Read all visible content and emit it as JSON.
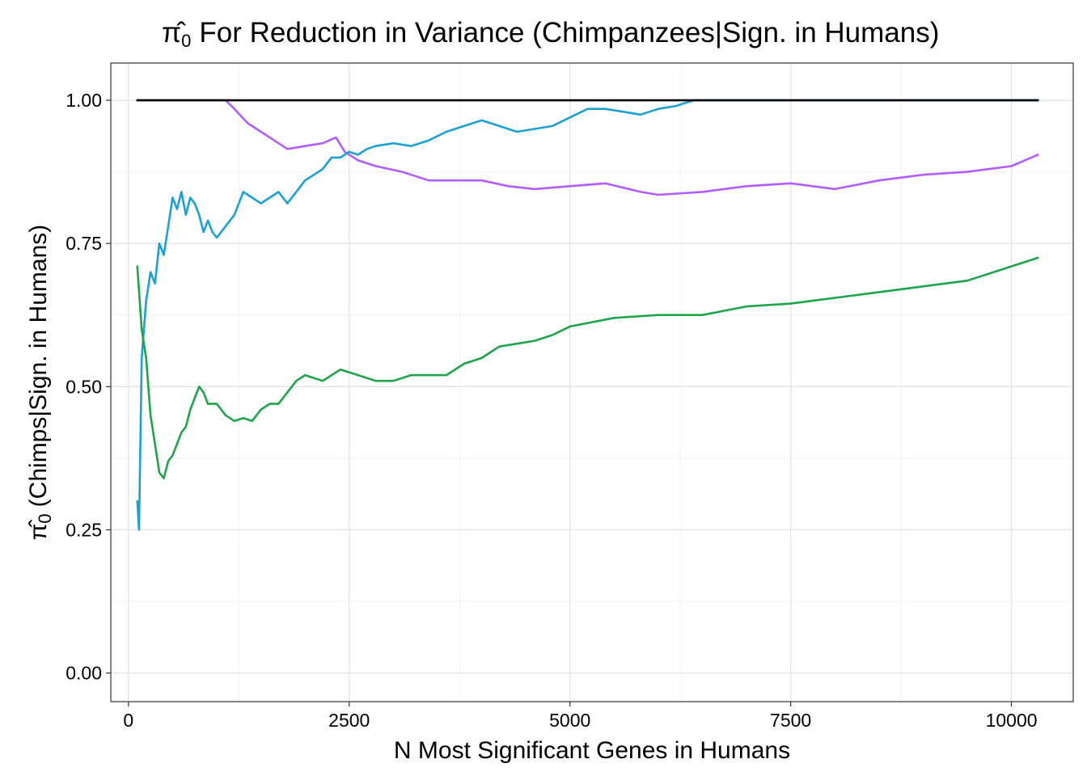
{
  "chart_data": {
    "type": "line",
    "title_prefix": "π̂",
    "title_subscript": "0",
    "title_text": "For Reduction in Variance (Chimpanzees|Sign. in Humans)",
    "xlabel": "N Most Significant Genes in Humans",
    "ylabel_prefix": "π̂",
    "ylabel_subscript": "0",
    "ylabel_text": "(Chimps|Sign. in Humans)",
    "xlim": [
      -200,
      10700
    ],
    "ylim": [
      -0.05,
      1.065
    ],
    "xticks": [
      0,
      2500,
      5000,
      7500,
      10000
    ],
    "xtick_labels": [
      "0",
      "2500",
      "5000",
      "7500",
      "10000"
    ],
    "yticks": [
      0,
      0.25,
      0.5,
      0.75,
      1.0
    ],
    "ytick_labels": [
      "0.00",
      "0.25",
      "0.50",
      "0.75",
      "1.00"
    ],
    "grid": true,
    "legend": "none",
    "series": [
      {
        "color": "#000000",
        "x": [
          100,
          10300
        ],
        "y": [
          1.0,
          1.0
        ]
      },
      {
        "color": "#b25dfe",
        "x": [
          100,
          1100,
          1200,
          1350,
          1500,
          1650,
          1800,
          2000,
          2200,
          2350,
          2450,
          2600,
          2800,
          3100,
          3400,
          3700,
          4000,
          4300,
          4600,
          5000,
          5400,
          5800,
          6000,
          6500,
          7000,
          7500,
          8000,
          8500,
          9000,
          9500,
          10000,
          10300
        ],
        "y": [
          1.0,
          1.0,
          0.985,
          0.96,
          0.945,
          0.93,
          0.915,
          0.92,
          0.925,
          0.935,
          0.91,
          0.895,
          0.885,
          0.875,
          0.86,
          0.86,
          0.86,
          0.85,
          0.845,
          0.85,
          0.855,
          0.84,
          0.835,
          0.84,
          0.85,
          0.855,
          0.845,
          0.86,
          0.87,
          0.875,
          0.885,
          0.905
        ]
      },
      {
        "color": "#1ca1d0",
        "x": [
          100,
          120,
          150,
          200,
          250,
          300,
          350,
          400,
          450,
          500,
          550,
          600,
          650,
          700,
          750,
          800,
          850,
          900,
          950,
          1000,
          1100,
          1200,
          1300,
          1400,
          1500,
          1600,
          1700,
          1800,
          1900,
          2000,
          2100,
          2200,
          2300,
          2400,
          2500,
          2600,
          2700,
          2800,
          3000,
          3200,
          3400,
          3600,
          3800,
          4000,
          4200,
          4400,
          4600,
          4800,
          5000,
          5200,
          5400,
          5600,
          5800,
          6000,
          6200,
          6400,
          7000,
          8000,
          9000,
          10000,
          10300
        ],
        "y": [
          0.3,
          0.25,
          0.55,
          0.65,
          0.7,
          0.68,
          0.75,
          0.73,
          0.78,
          0.83,
          0.81,
          0.84,
          0.8,
          0.83,
          0.82,
          0.8,
          0.77,
          0.79,
          0.77,
          0.76,
          0.78,
          0.8,
          0.84,
          0.83,
          0.82,
          0.83,
          0.84,
          0.82,
          0.84,
          0.86,
          0.87,
          0.88,
          0.9,
          0.9,
          0.91,
          0.905,
          0.915,
          0.92,
          0.925,
          0.92,
          0.93,
          0.945,
          0.955,
          0.965,
          0.955,
          0.945,
          0.95,
          0.955,
          0.97,
          0.985,
          0.985,
          0.98,
          0.975,
          0.985,
          0.99,
          1.0,
          1.0,
          1.0,
          1.0,
          1.0,
          1.0
        ]
      },
      {
        "color": "#1ea44a",
        "x": [
          100,
          150,
          200,
          250,
          300,
          350,
          400,
          450,
          500,
          550,
          600,
          650,
          700,
          750,
          800,
          850,
          900,
          1000,
          1100,
          1200,
          1300,
          1400,
          1500,
          1600,
          1700,
          1800,
          1900,
          2000,
          2200,
          2400,
          2600,
          2800,
          3000,
          3200,
          3400,
          3600,
          3800,
          4000,
          4200,
          4400,
          4600,
          4800,
          5000,
          5500,
          6000,
          6500,
          7000,
          7500,
          8000,
          8500,
          9000,
          9500,
          10000,
          10300
        ],
        "y": [
          0.71,
          0.6,
          0.55,
          0.45,
          0.4,
          0.35,
          0.34,
          0.37,
          0.38,
          0.4,
          0.42,
          0.43,
          0.46,
          0.48,
          0.5,
          0.49,
          0.47,
          0.47,
          0.45,
          0.44,
          0.445,
          0.44,
          0.46,
          0.47,
          0.47,
          0.49,
          0.51,
          0.52,
          0.51,
          0.53,
          0.52,
          0.51,
          0.51,
          0.52,
          0.52,
          0.52,
          0.54,
          0.55,
          0.57,
          0.575,
          0.58,
          0.59,
          0.605,
          0.62,
          0.625,
          0.625,
          0.64,
          0.645,
          0.655,
          0.665,
          0.675,
          0.685,
          0.71,
          0.725
        ]
      }
    ]
  }
}
